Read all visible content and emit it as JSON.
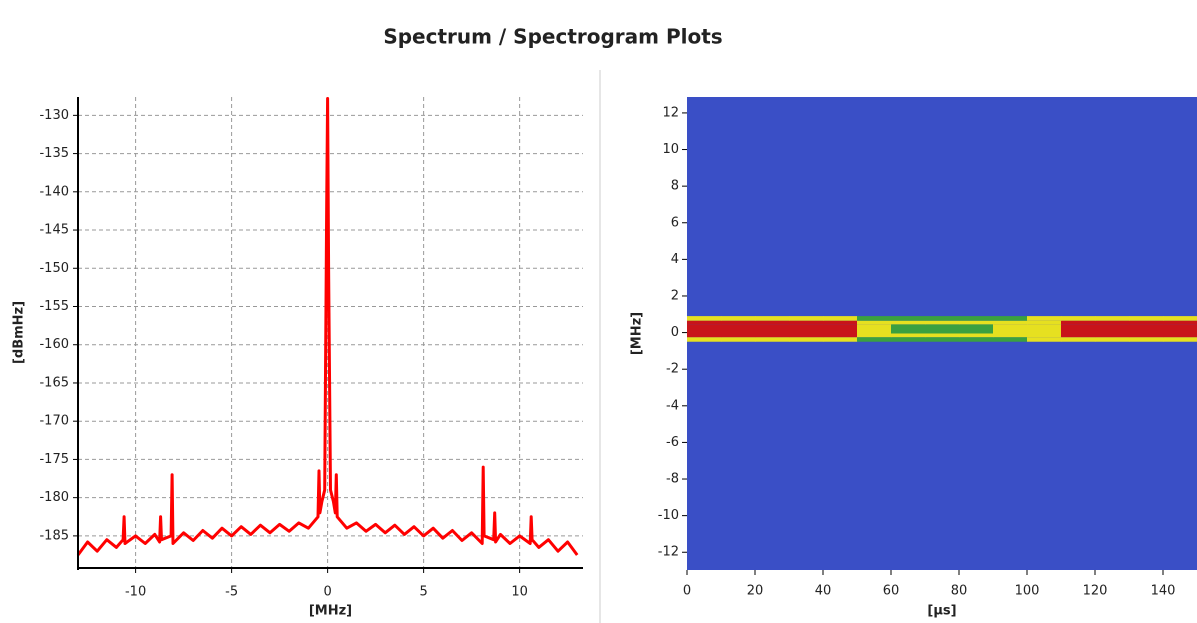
{
  "title": "Spectrum / Spectrogram Plots",
  "chart_data": [
    {
      "type": "line",
      "xlabel": "[MHz]",
      "ylabel": "[dBmHz]",
      "color": "#ff0000",
      "grid": true,
      "xlim": [
        -13,
        13.3
      ],
      "ylim": [
        -189.2,
        -127.6
      ],
      "xticks": [
        -10,
        -5,
        0,
        5,
        10
      ],
      "yticks": [
        -130,
        -135,
        -140,
        -145,
        -150,
        -155,
        -160,
        -165,
        -170,
        -175,
        -180,
        -185
      ],
      "x": [
        -13,
        -12.5,
        -12,
        -11.5,
        -11,
        -10.65,
        -10.6,
        -10.55,
        -10,
        -9.5,
        -9,
        -8.75,
        -8.7,
        -8.65,
        -8.15,
        -8.1,
        -8.05,
        -7.5,
        -7,
        -6.5,
        -6,
        -5.5,
        -5,
        -4.5,
        -4,
        -3.5,
        -3,
        -2.5,
        -2,
        -1.5,
        -1,
        -0.5,
        -0.45,
        -0.4,
        -0.3,
        -0.15,
        -0.05,
        0,
        0.05,
        0.15,
        0.3,
        0.4,
        0.45,
        0.5,
        1,
        1.5,
        2,
        2.5,
        3,
        3.5,
        4,
        4.5,
        5,
        5.5,
        6,
        6.5,
        7,
        7.5,
        8.05,
        8.1,
        8.15,
        8.65,
        8.7,
        8.75,
        9,
        9.5,
        10,
        10.55,
        10.6,
        10.65,
        11,
        11.5,
        12,
        12.5,
        13
      ],
      "values": [
        -187.5,
        -185.8,
        -187,
        -185.5,
        -186.5,
        -185.5,
        -182.5,
        -186,
        -185,
        -186,
        -184.8,
        -185.8,
        -182.5,
        -185.5,
        -185,
        -177,
        -186,
        -184.6,
        -185.6,
        -184.3,
        -185.3,
        -184,
        -185,
        -183.8,
        -184.8,
        -183.6,
        -184.6,
        -183.5,
        -184.4,
        -183.3,
        -184,
        -182.5,
        -176.5,
        -182,
        -180.5,
        -179,
        -141.5,
        -127.8,
        -150,
        -179,
        -180.5,
        -182,
        -177,
        -182.5,
        -184,
        -183.3,
        -184.4,
        -183.5,
        -184.6,
        -183.6,
        -184.8,
        -183.8,
        -185,
        -184,
        -185.3,
        -184.3,
        -185.6,
        -184.6,
        -186,
        -176,
        -185,
        -185.5,
        -182,
        -185.8,
        -184.8,
        -186,
        -185,
        -186,
        -182.5,
        -185.5,
        -186.5,
        -185.5,
        -187,
        -185.8,
        -187.5
      ]
    },
    {
      "type": "heatmap",
      "xlabel": "[µs]",
      "ylabel": "[MHz]",
      "background": "#3a4fc6",
      "xlim": [
        0,
        150
      ],
      "ylim": [
        -12.97,
        12.87
      ],
      "xticks": [
        0,
        20,
        40,
        60,
        80,
        100,
        120,
        140
      ],
      "yticks": [
        12,
        10,
        8,
        6,
        4,
        2,
        0,
        -2,
        -4,
        -6,
        -8,
        -10,
        -12
      ],
      "colorscale": [
        "#3a4fc6",
        "#3aa040",
        "#e6e020",
        "#c8141a"
      ],
      "x_edges": [
        0,
        10,
        20,
        30,
        40,
        50,
        60,
        70,
        80,
        90,
        100,
        110,
        120,
        130,
        140,
        150
      ],
      "y_edges": [
        -0.5,
        -0.25,
        -0.05,
        0.45,
        0.65,
        0.9
      ],
      "z": [
        [
          2,
          2,
          2,
          2,
          2,
          1,
          1,
          1,
          1,
          1,
          2,
          2,
          2,
          2,
          2
        ],
        [
          3,
          3,
          3,
          3,
          3,
          2,
          2,
          2,
          2,
          2,
          2,
          3,
          3,
          3,
          3
        ],
        [
          3,
          3,
          3,
          3,
          3,
          2,
          1,
          1,
          1,
          2,
          2,
          3,
          3,
          3,
          3
        ],
        [
          3,
          3,
          3,
          3,
          3,
          2,
          2,
          2,
          2,
          2,
          2,
          3,
          3,
          3,
          3
        ],
        [
          2,
          2,
          2,
          2,
          2,
          1,
          1,
          1,
          1,
          1,
          2,
          2,
          2,
          2,
          2
        ]
      ]
    }
  ]
}
